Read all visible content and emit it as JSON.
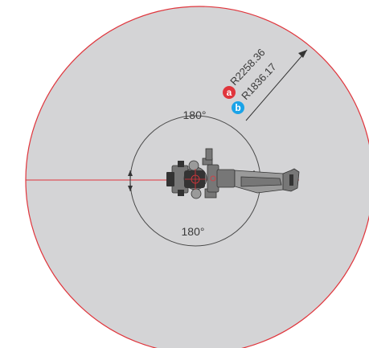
{
  "colors": {
    "outer_fill": "#d4d4d6",
    "outer_stroke": "#e0353c",
    "centerline": "#e0353c",
    "inner_circle": "#4a4a4a",
    "robot_body": "#777777",
    "robot_dark": "#333333",
    "badge_a": "#e0353c",
    "badge_b": "#1aa3e8",
    "dim_line": "#333333"
  },
  "labels": {
    "radius_a": "R2258.36",
    "radius_b": "R1836.17",
    "angle_top": "180°",
    "angle_bottom": "180°",
    "badge_a": "a",
    "badge_b": "b"
  },
  "icons": {
    "robot": "industrial-robot-top-view-icon",
    "badge_a": "badge-a-icon",
    "badge_b": "badge-b-icon"
  }
}
